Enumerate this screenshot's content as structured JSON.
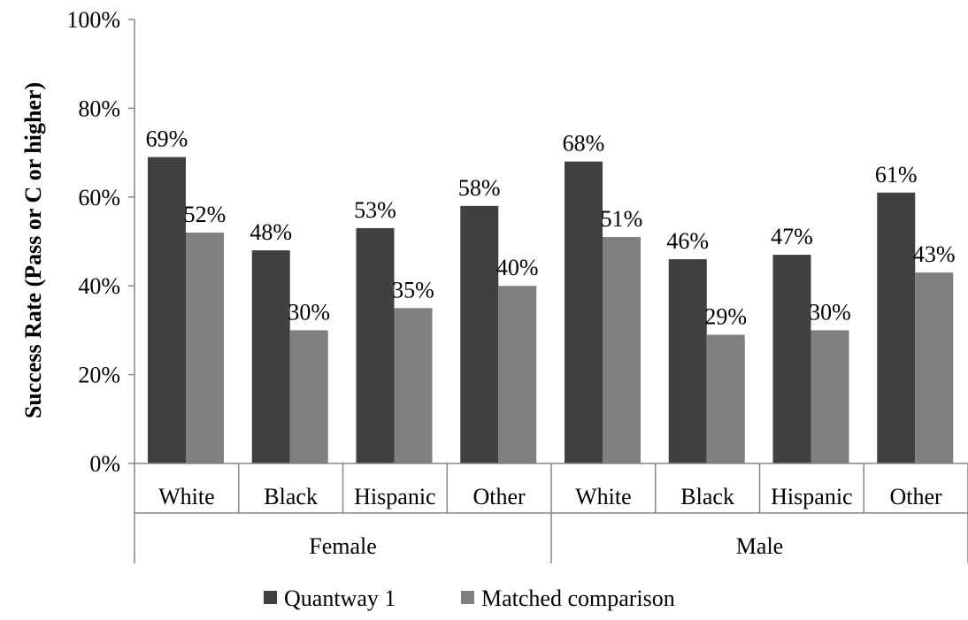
{
  "chart_data": {
    "type": "bar",
    "ylabel": "Success Rate (Pass or C or higher)",
    "y_ticks": [
      "0%",
      "20%",
      "40%",
      "60%",
      "80%",
      "100%"
    ],
    "ylim": [
      0,
      100
    ],
    "grid": false,
    "legend_position": "bottom",
    "groups": [
      {
        "label": "Female",
        "categories": [
          "White",
          "Black",
          "Hispanic",
          "Other"
        ]
      },
      {
        "label": "Male",
        "categories": [
          "White",
          "Black",
          "Hispanic",
          "Other"
        ]
      }
    ],
    "series": [
      {
        "name": "Quantway 1",
        "color": "#404040",
        "values": [
          69,
          48,
          53,
          58,
          68,
          46,
          47,
          61
        ],
        "labels": [
          "69%",
          "48%",
          "53%",
          "58%",
          "68%",
          "46%",
          "47%",
          "61%"
        ]
      },
      {
        "name": "Matched comparison",
        "color": "#808080",
        "values": [
          52,
          30,
          35,
          40,
          51,
          29,
          30,
          43
        ],
        "labels": [
          "52%",
          "30%",
          "35%",
          "40%",
          "51%",
          "29%",
          "30%",
          "43%"
        ]
      }
    ]
  }
}
